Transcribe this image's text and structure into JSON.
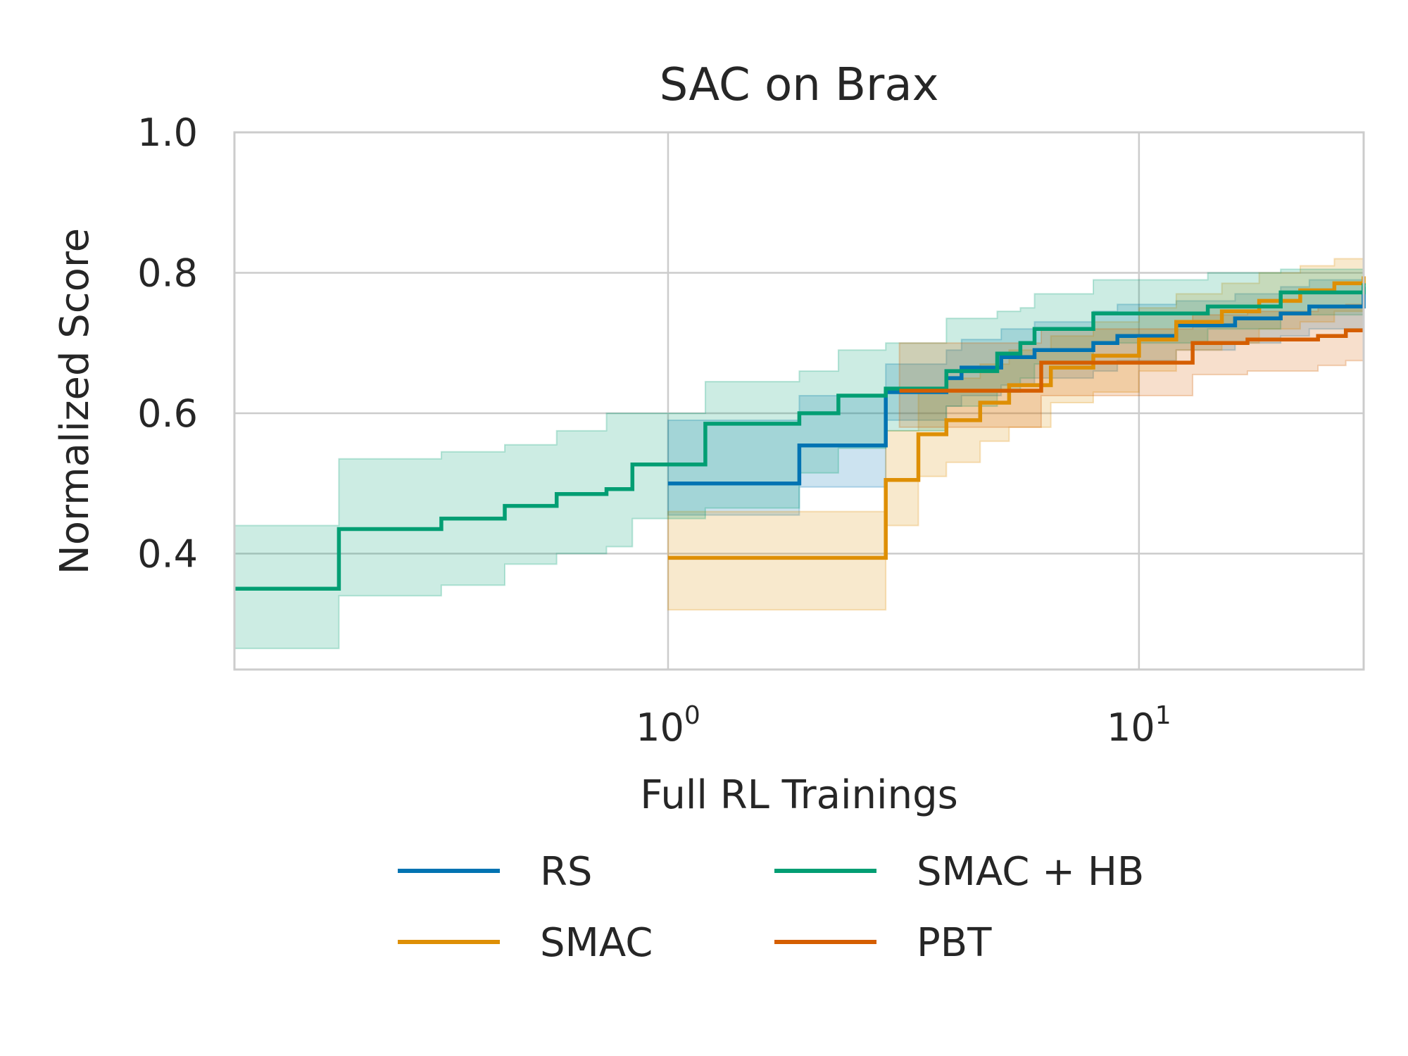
{
  "chart_data": {
    "type": "line",
    "title": "SAC on Brax",
    "xlabel": "Full RL Trainings",
    "ylabel": "Normalized Score",
    "xscale": "log",
    "xlim": [
      0.12,
      30
    ],
    "ylim": [
      0.235,
      1.0
    ],
    "grid": true,
    "yticks": [
      {
        "value": 0.4,
        "label": "0.4"
      },
      {
        "value": 0.6,
        "label": "0.6"
      },
      {
        "value": 0.8,
        "label": "0.8"
      },
      {
        "value": 1.0,
        "label": "1.0"
      }
    ],
    "xticks": [
      {
        "value": 1,
        "base": "10",
        "exp": "0"
      },
      {
        "value": 10,
        "base": "10",
        "exp": "1"
      }
    ],
    "legend": {
      "position": "bottom",
      "columns": 2
    },
    "series": [
      {
        "name": "RS",
        "color": "#0173b2",
        "x": [
          1.0,
          1.16,
          1.9,
          2.9,
          3.9,
          4.2,
          5.1,
          6.0,
          8.0,
          9.0,
          12.0,
          16.0,
          20.0,
          23.0,
          30.0
        ],
        "y": [
          0.5,
          0.5,
          0.554,
          0.63,
          0.65,
          0.665,
          0.68,
          0.69,
          0.7,
          0.71,
          0.725,
          0.735,
          0.742,
          0.752,
          0.78
        ],
        "lower": [
          0.455,
          0.455,
          0.495,
          0.59,
          0.61,
          0.625,
          0.64,
          0.65,
          0.66,
          0.675,
          0.69,
          0.7,
          0.71,
          0.72,
          0.74
        ],
        "upper": [
          0.59,
          0.59,
          0.625,
          0.67,
          0.69,
          0.705,
          0.72,
          0.73,
          0.745,
          0.755,
          0.76,
          0.77,
          0.78,
          0.79,
          0.81
        ]
      },
      {
        "name": "SMAC",
        "color": "#de8f05",
        "x": [
          1.0,
          1.9,
          2.9,
          3.4,
          3.9,
          4.6,
          5.3,
          6.5,
          8.0,
          10.0,
          12.0,
          15.0,
          18.0,
          22.0,
          26.0,
          30.0
        ],
        "y": [
          0.394,
          0.394,
          0.505,
          0.57,
          0.59,
          0.615,
          0.64,
          0.665,
          0.682,
          0.705,
          0.73,
          0.745,
          0.76,
          0.775,
          0.785,
          0.795
        ],
        "lower": [
          0.32,
          0.32,
          0.44,
          0.51,
          0.53,
          0.56,
          0.58,
          0.615,
          0.63,
          0.66,
          0.69,
          0.7,
          0.72,
          0.73,
          0.745,
          0.75
        ],
        "upper": [
          0.46,
          0.46,
          0.575,
          0.63,
          0.65,
          0.67,
          0.69,
          0.71,
          0.73,
          0.75,
          0.77,
          0.785,
          0.8,
          0.81,
          0.82,
          0.825
        ]
      },
      {
        "name": "SMAC + HB",
        "color": "#029e73",
        "x": [
          0.12,
          0.2,
          0.33,
          0.45,
          0.58,
          0.74,
          0.84,
          1.2,
          1.9,
          2.3,
          2.9,
          3.9,
          5.0,
          5.6,
          6.0,
          8.0,
          14.0,
          20.0,
          30.0
        ],
        "y": [
          0.35,
          0.435,
          0.45,
          0.468,
          0.485,
          0.492,
          0.527,
          0.585,
          0.6,
          0.625,
          0.635,
          0.66,
          0.685,
          0.7,
          0.72,
          0.742,
          0.752,
          0.772,
          0.785
        ],
        "lower": [
          0.265,
          0.34,
          0.355,
          0.385,
          0.4,
          0.41,
          0.45,
          0.465,
          0.515,
          0.55,
          0.575,
          0.61,
          0.63,
          0.65,
          0.67,
          0.7,
          0.72,
          0.74,
          0.755
        ],
        "upper": [
          0.44,
          0.535,
          0.545,
          0.555,
          0.575,
          0.6,
          0.6,
          0.645,
          0.66,
          0.69,
          0.7,
          0.735,
          0.745,
          0.75,
          0.77,
          0.79,
          0.8,
          0.805,
          0.81
        ]
      },
      {
        "name": "PBT",
        "color": "#d55e00",
        "x": [
          3.1,
          5.0,
          6.2,
          8.0,
          13.0,
          17.0,
          24.0,
          27.5,
          30.0
        ],
        "y": [
          0.632,
          0.632,
          0.672,
          0.672,
          0.7,
          0.705,
          0.71,
          0.718,
          0.718
        ],
        "lower": [
          0.58,
          0.58,
          0.625,
          0.625,
          0.655,
          0.66,
          0.668,
          0.675,
          0.675
        ],
        "upper": [
          0.7,
          0.7,
          0.72,
          0.72,
          0.74,
          0.745,
          0.75,
          0.755,
          0.755
        ]
      }
    ]
  }
}
